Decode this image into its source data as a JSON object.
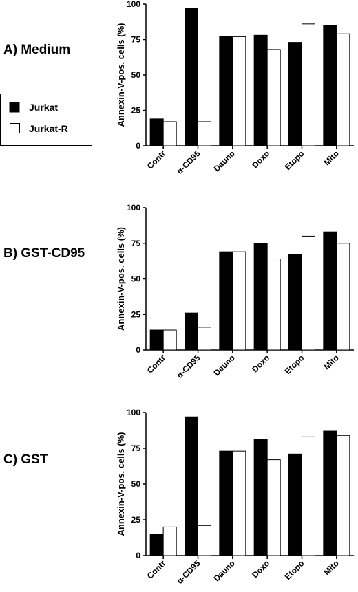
{
  "legend": {
    "items": [
      {
        "label": "Jurkat",
        "color": "#000000"
      },
      {
        "label": "Jurkat-R",
        "color": "#ffffff"
      }
    ]
  },
  "chart_data": [
    {
      "type": "bar",
      "title": "A) Medium",
      "ylabel": "Annexin-V-pos. cells (%)",
      "ylim": [
        0,
        100
      ],
      "yticks": [
        "0",
        "25",
        "50",
        "75",
        "100"
      ],
      "categories": [
        "Contr",
        "α-CD95",
        "Dauno",
        "Doxo",
        "Etopo",
        "Mito"
      ],
      "series": [
        {
          "name": "Jurkat",
          "values": [
            19,
            97,
            77,
            78,
            73,
            85
          ]
        },
        {
          "name": "Jurkat-R",
          "values": [
            17,
            17,
            77,
            68,
            86,
            79
          ]
        }
      ]
    },
    {
      "type": "bar",
      "title": "B) GST-CD95",
      "ylabel": "Annexin-V-pos. cells (%)",
      "ylim": [
        0,
        100
      ],
      "yticks": [
        "0",
        "25",
        "50",
        "75",
        "100"
      ],
      "categories": [
        "Contr",
        "α-CD95",
        "Dauno",
        "Doxo",
        "Etopo",
        "Mito"
      ],
      "series": [
        {
          "name": "Jurkat",
          "values": [
            14,
            26,
            69,
            75,
            67,
            83
          ]
        },
        {
          "name": "Jurkat-R",
          "values": [
            14,
            16,
            69,
            64,
            80,
            75
          ]
        }
      ]
    },
    {
      "type": "bar",
      "title": "C) GST",
      "ylabel": "Annexin-V-pos. cells (%)",
      "ylim": [
        0,
        100
      ],
      "yticks": [
        "0",
        "25",
        "50",
        "75",
        "100"
      ],
      "categories": [
        "Contr",
        "α-CD95",
        "Dauno",
        "Doxo",
        "Etopo",
        "Mito"
      ],
      "series": [
        {
          "name": "Jurkat",
          "values": [
            15,
            97,
            73,
            81,
            71,
            87
          ]
        },
        {
          "name": "Jurkat-R",
          "values": [
            20,
            21,
            73,
            67,
            83,
            84
          ]
        }
      ]
    }
  ]
}
